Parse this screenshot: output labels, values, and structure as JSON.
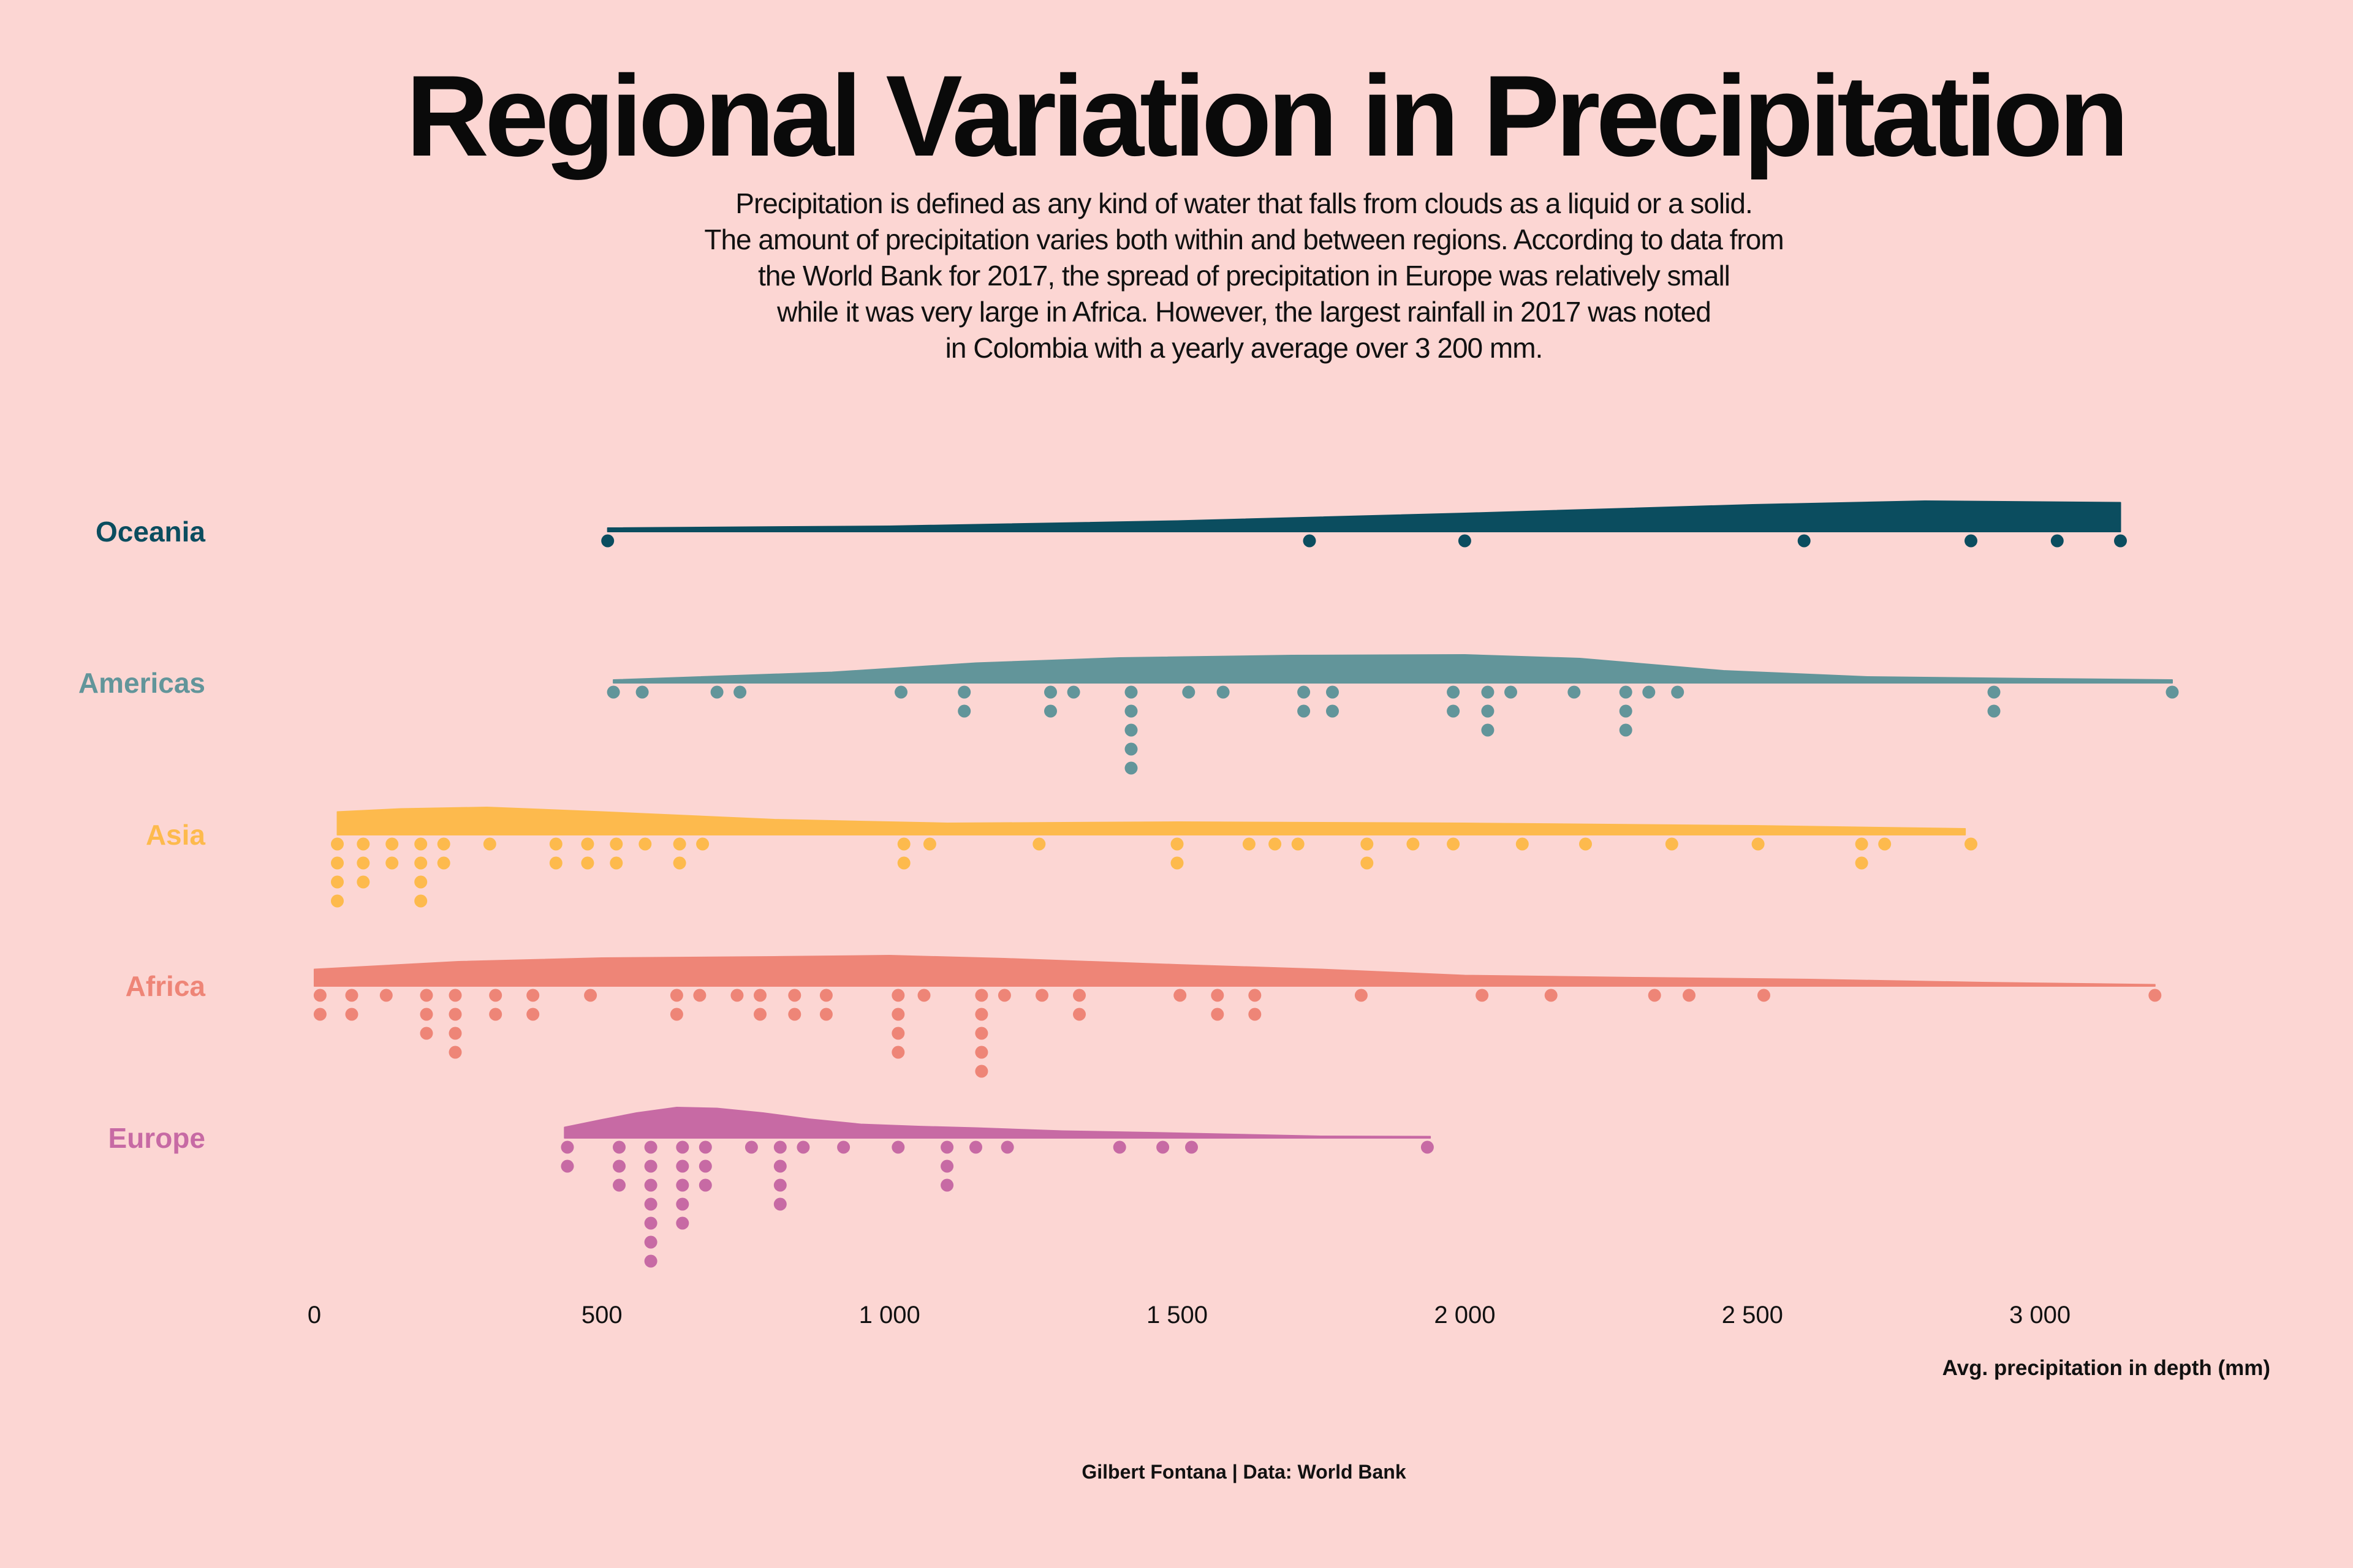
{
  "chart_data": {
    "type": "raincloud",
    "title": "Regional Variation in Precipitation",
    "subtitle_lines": [
      "Precipitation is defined as any kind of water that falls from clouds as a liquid or a solid.",
      "The amount of precipitation  varies both within and between regions. According to data from",
      "the World Bank for 2017, the spread of precipitation in Europe was relatively small",
      "while it was very large in Africa. However, the largest rainfall in 2017 was noted",
      "in Colombia with a yearly average over 3 200 mm."
    ],
    "xlabel": "Avg. precipitation in depth (mm)",
    "xlim": [
      0,
      3400
    ],
    "xticks": [
      0,
      500,
      1000,
      1500,
      2000,
      2500,
      3000
    ],
    "xtick_labels": [
      "0",
      "500",
      "1 000",
      "1 500",
      "2 000",
      "2 500",
      "3 000"
    ],
    "caption": "Gilbert Fontana | Data: World Bank",
    "series": [
      {
        "name": "Oceania",
        "color": "#0B4D5F",
        "density": [
          [
            510,
            0.12
          ],
          [
            1000,
            0.18
          ],
          [
            1500,
            0.35
          ],
          [
            2000,
            0.6
          ],
          [
            2500,
            0.88
          ],
          [
            2800,
            1.0
          ],
          [
            3140,
            0.95
          ]
        ],
        "values": [
          510,
          1730,
          2000,
          2590,
          2880,
          3030,
          3140
        ]
      },
      {
        "name": "Americas",
        "color": "#62959A",
        "density": [
          [
            520,
            0.1
          ],
          [
            900,
            0.35
          ],
          [
            1150,
            0.65
          ],
          [
            1400,
            0.82
          ],
          [
            1700,
            0.9
          ],
          [
            2000,
            0.92
          ],
          [
            2200,
            0.8
          ],
          [
            2450,
            0.4
          ],
          [
            2700,
            0.2
          ],
          [
            3000,
            0.14
          ],
          [
            3230,
            0.1
          ]
        ],
        "values": [
          520,
          570,
          700,
          740,
          1020,
          1130,
          1130,
          1280,
          1280,
          1320,
          1420,
          1420,
          1420,
          1420,
          1420,
          1520,
          1580,
          1720,
          1720,
          1770,
          1770,
          1980,
          1980,
          2040,
          2040,
          2040,
          2080,
          2190,
          2280,
          2280,
          2280,
          2320,
          2370,
          2920,
          2920,
          3230
        ]
      },
      {
        "name": "Asia",
        "color": "#FDBA4D",
        "density": [
          [
            40,
            0.75
          ],
          [
            150,
            0.85
          ],
          [
            300,
            0.9
          ],
          [
            500,
            0.75
          ],
          [
            800,
            0.5
          ],
          [
            1100,
            0.38
          ],
          [
            1500,
            0.42
          ],
          [
            2000,
            0.38
          ],
          [
            2500,
            0.3
          ],
          [
            2870,
            0.2
          ]
        ],
        "values": [
          40,
          40,
          40,
          40,
          85,
          85,
          85,
          135,
          135,
          185,
          185,
          185,
          185,
          225,
          225,
          305,
          420,
          420,
          475,
          475,
          525,
          525,
          575,
          635,
          635,
          675,
          1025,
          1025,
          1070,
          1260,
          1500,
          1500,
          1625,
          1670,
          1710,
          1830,
          1830,
          1910,
          1980,
          2100,
          2210,
          2360,
          2510,
          2690,
          2690,
          2730,
          2880
        ]
      },
      {
        "name": "Africa",
        "color": "#EE8577",
        "density": [
          [
            0,
            0.55
          ],
          [
            250,
            0.8
          ],
          [
            500,
            0.92
          ],
          [
            800,
            0.96
          ],
          [
            1000,
            1.0
          ],
          [
            1200,
            0.9
          ],
          [
            1500,
            0.7
          ],
          [
            1750,
            0.55
          ],
          [
            2000,
            0.35
          ],
          [
            2300,
            0.28
          ],
          [
            2600,
            0.22
          ],
          [
            2900,
            0.12
          ],
          [
            3200,
            0.05
          ]
        ],
        "values": [
          10,
          10,
          65,
          65,
          125,
          195,
          195,
          195,
          245,
          245,
          245,
          245,
          315,
          315,
          380,
          380,
          480,
          630,
          630,
          670,
          735,
          775,
          775,
          835,
          835,
          890,
          890,
          1015,
          1015,
          1015,
          1015,
          1060,
          1160,
          1160,
          1160,
          1160,
          1160,
          1200,
          1265,
          1330,
          1330,
          1505,
          1570,
          1570,
          1635,
          1635,
          1820,
          2030,
          2150,
          2330,
          2390,
          2520,
          3200
        ]
      },
      {
        "name": "Europe",
        "color": "#C76AA4",
        "density": [
          [
            435,
            0.35
          ],
          [
            500,
            0.6
          ],
          [
            560,
            0.82
          ],
          [
            630,
            1.0
          ],
          [
            700,
            0.97
          ],
          [
            780,
            0.82
          ],
          [
            860,
            0.62
          ],
          [
            950,
            0.45
          ],
          [
            1050,
            0.38
          ],
          [
            1150,
            0.33
          ],
          [
            1300,
            0.23
          ],
          [
            1450,
            0.18
          ],
          [
            1600,
            0.12
          ],
          [
            1750,
            0.06
          ],
          [
            1940,
            0.05
          ]
        ],
        "values": [
          440,
          440,
          530,
          530,
          530,
          585,
          585,
          585,
          585,
          585,
          585,
          585,
          640,
          640,
          640,
          640,
          640,
          680,
          680,
          680,
          760,
          810,
          810,
          810,
          810,
          850,
          920,
          1015,
          1100,
          1100,
          1100,
          1150,
          1205,
          1400,
          1475,
          1525,
          1935
        ]
      }
    ]
  }
}
